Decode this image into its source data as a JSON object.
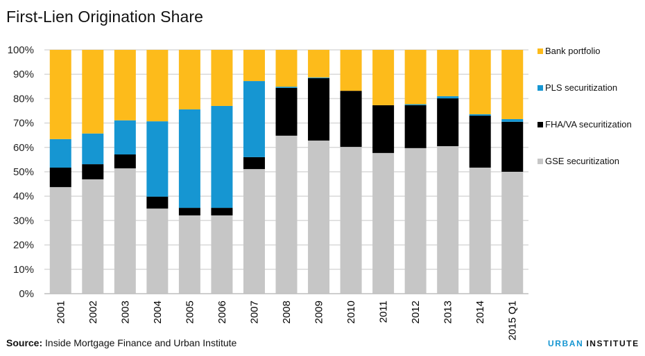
{
  "title": "First-Lien Origination Share",
  "source_label": "Source:",
  "source_text": " Inside Mortgage Finance and Urban Institute",
  "brand": {
    "part1": "URBAN",
    "part2": "INSTITUTE",
    "color1": "#1696d2",
    "color2": "#111111"
  },
  "chart_data": {
    "type": "bar",
    "stacked": true,
    "title": "First-Lien Origination Share",
    "xlabel": "",
    "ylabel": "",
    "ylim": [
      0,
      100
    ],
    "yticks": [
      0,
      10,
      20,
      30,
      40,
      50,
      60,
      70,
      80,
      90,
      100
    ],
    "ytick_labels": [
      "0%",
      "10%",
      "20%",
      "30%",
      "40%",
      "50%",
      "60%",
      "70%",
      "80%",
      "90%",
      "100%"
    ],
    "grid": true,
    "legend_position": "right",
    "categories": [
      "2001",
      "2002",
      "2003",
      "2004",
      "2005",
      "2006",
      "2007",
      "2008",
      "2009",
      "2010",
      "2011",
      "2012",
      "2013",
      "2014",
      "2015 Q1"
    ],
    "series": [
      {
        "name": "GSE securitization",
        "color": "#c6c6c6",
        "values": [
          43.7,
          46.9,
          51.4,
          34.9,
          32.1,
          32.1,
          51.1,
          64.8,
          62.8,
          60.2,
          57.7,
          59.7,
          60.5,
          51.7,
          50.0
        ]
      },
      {
        "name": "FHA/VA securitization",
        "color": "#000000",
        "values": [
          8.0,
          6.2,
          5.7,
          4.9,
          3.1,
          3.1,
          4.9,
          19.6,
          25.6,
          23.0,
          19.6,
          17.6,
          19.6,
          21.3,
          20.5
        ]
      },
      {
        "name": "PLS securitization",
        "color": "#1696d2",
        "values": [
          11.7,
          12.6,
          14.0,
          30.9,
          40.4,
          41.8,
          31.2,
          0.5,
          0.3,
          0.0,
          0.0,
          0.4,
          0.9,
          0.6,
          1.1
        ]
      },
      {
        "name": "Bank portfolio",
        "color": "#fdbb1b",
        "values": [
          36.6,
          34.3,
          28.9,
          29.3,
          24.4,
          23.0,
          12.8,
          15.1,
          11.3,
          16.8,
          22.7,
          22.3,
          19.0,
          26.4,
          28.4
        ]
      }
    ],
    "legend_order": [
      "Bank portfolio",
      "PLS securitization",
      "FHA/VA securitization",
      "GSE securitization"
    ]
  }
}
